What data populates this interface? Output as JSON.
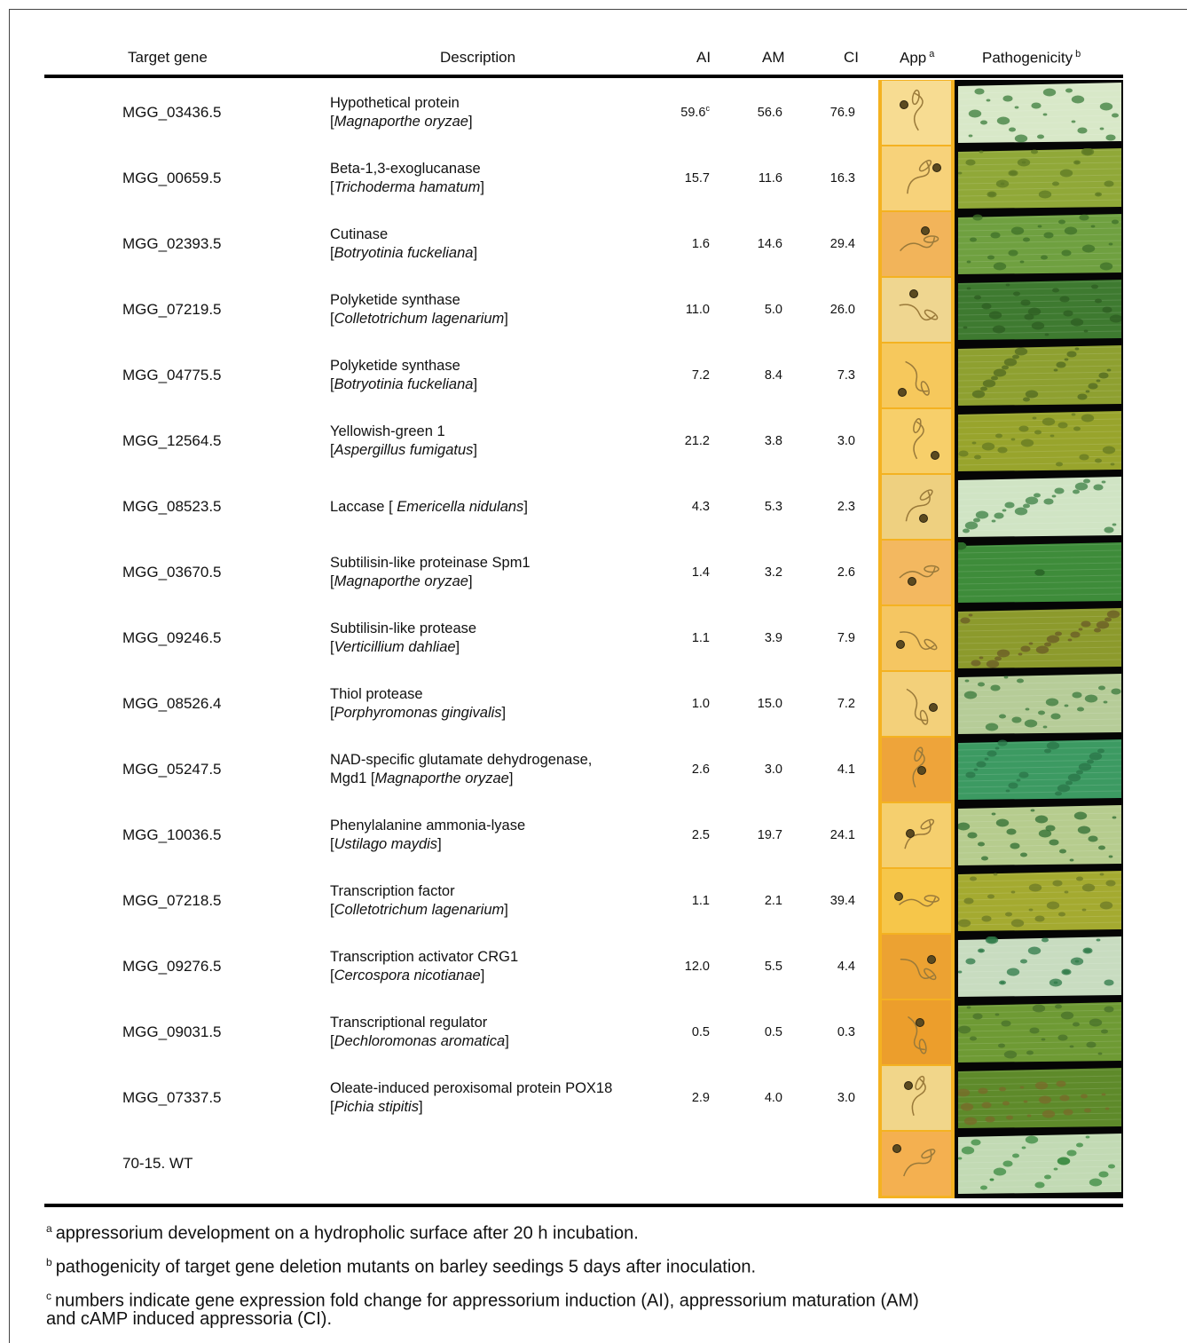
{
  "headers": {
    "target_gene": "Target gene",
    "description": "Description",
    "ai": "AI",
    "am": "AM",
    "ci": "CI",
    "app": "App",
    "app_mark": "a",
    "pathogenicity": "Pathogenicity",
    "pathogenicity_mark": "b"
  },
  "rows": [
    {
      "gene": "MGG_03436.5",
      "line1": "Hypothetical protein",
      "pre": "[",
      "species": "Magnaporthe oryzae",
      "post": "]",
      "ai": "59.6",
      "ai_mark": "c",
      "am": "56.6",
      "ci": "76.9",
      "app_tint": "#f7dc92",
      "leaf_base": "#d8e8c8",
      "leaf_spots": "#3c7e3c"
    },
    {
      "gene": "MGG_00659.5",
      "line1": "Beta-1,3-exoglucanase",
      "pre": "[",
      "species": "Trichoderma hamatum",
      "post": "]",
      "ai": "15.7",
      "ai_mark": "",
      "am": "11.6",
      "ci": "16.3",
      "app_tint": "#f7d27a",
      "leaf_base": "#90a838",
      "leaf_spots": "#5e7a24"
    },
    {
      "gene": "MGG_02393.5",
      "line1": "Cutinase",
      "pre": "[",
      "species": "Botryotinia fuckeliana",
      "post": "]",
      "ai": "1.6",
      "ai_mark": "",
      "am": "14.6",
      "ci": "29.4",
      "app_tint": "#f2b45a",
      "leaf_base": "#6fa040",
      "leaf_spots": "#3e7028"
    },
    {
      "gene": "MGG_07219.5",
      "line1": "Polyketide synthase",
      "pre": "[",
      "species": "Colletotrichum lagenarium",
      "post": "]",
      "ai": "11.0",
      "ai_mark": "",
      "am": "5.0",
      "ci": "26.0",
      "app_tint": "#efd690",
      "leaf_base": "#3e7a30",
      "leaf_spots": "#2e5e22"
    },
    {
      "gene": "MGG_04775.5",
      "line1": "Polyketide synthase",
      "pre": "[",
      "species": "Botryotinia fuckeliana",
      "post": "]",
      "ai": "7.2",
      "ai_mark": "",
      "am": "8.4",
      "ci": "7.3",
      "app_tint": "#f6c85c",
      "leaf_base": "#8ea030",
      "leaf_spots": "#506a20"
    },
    {
      "gene": "MGG_12564.5",
      "line1": "Yellowish-green 1",
      "pre": "[",
      "species": "Aspergillus fumigatus",
      "post": "]",
      "ai": "21.2",
      "ai_mark": "",
      "am": "3.8",
      "ci": "3.0",
      "app_tint": "#f7cf6a",
      "leaf_base": "#98a42c",
      "leaf_spots": "#667a22"
    },
    {
      "gene": "MGG_08523.5",
      "line1": "Laccase",
      "pre": "[ ",
      "species": "Emericella nidulans",
      "post": "]",
      "ai": "4.3",
      "ai_mark": "",
      "am": "5.3",
      "ci": "2.3",
      "app_tint": "#eed080",
      "leaf_base": "#d0e4c4",
      "leaf_spots": "#3c8044"
    },
    {
      "gene": "MGG_03670.5",
      "line1": "Subtilisin-like proteinase Spm1",
      "pre": "[",
      "species": "Magnaporthe oryzae",
      "post": "]",
      "ai": "1.4",
      "ai_mark": "",
      "am": "3.2",
      "ci": "2.6",
      "app_tint": "#f3b860",
      "leaf_base": "#3e8c3a",
      "leaf_spots": "#2c6a2a"
    },
    {
      "gene": "MGG_09246.5",
      "line1": "Subtilisin-like protease",
      "pre": "[",
      "species": "Verticillium dahliae",
      "post": "]",
      "ai": "1.1",
      "ai_mark": "",
      "am": "3.9",
      "ci": "7.9",
      "app_tint": "#f5c662",
      "leaf_base": "#8c9a2c",
      "leaf_spots": "#6a5a26"
    },
    {
      "gene": "MGG_08526.4",
      "line1": "Thiol protease",
      "pre": "[",
      "species": "Porphyromonas gingivalis",
      "post": "]",
      "ai": "1.0",
      "ai_mark": "",
      "am": "15.0",
      "ci": "7.2",
      "app_tint": "#f3d07a",
      "leaf_base": "#b6cc98",
      "leaf_spots": "#3a7a3c"
    },
    {
      "gene": "MGG_05247.5",
      "line1": "NAD-specific glutamate dehydrogenase,",
      "pre": "Mgd1 [",
      "species": "Magnaporthe oryzae",
      "post": "]",
      "ai": "2.6",
      "ai_mark": "",
      "am": "3.0",
      "ci": "4.1",
      "app_tint": "#eea43a",
      "leaf_base": "#3c9a62",
      "leaf_spots": "#2a7448"
    },
    {
      "gene": "MGG_10036.5",
      "line1": "Phenylalanine ammonia-lyase",
      "pre": "[",
      "species": "Ustilago maydis",
      "post": "]",
      "ai": "2.5",
      "ai_mark": "",
      "am": "19.7",
      "ci": "24.1",
      "app_tint": "#f5cf6e",
      "leaf_base": "#b6cc8e",
      "leaf_spots": "#2f6e32"
    },
    {
      "gene": "MGG_07218.5",
      "line1": "Transcription factor",
      "pre": "[",
      "species": "Colletotrichum lagenarium",
      "post": "]",
      "ai": "1.1",
      "ai_mark": "",
      "am": "2.1",
      "ci": "39.4",
      "app_tint": "#f6c64a",
      "leaf_base": "#a4aa30",
      "leaf_spots": "#6c7a26"
    },
    {
      "gene": "MGG_09276.5",
      "line1": "Transcription activator CRG1",
      "pre": "[",
      "species": "Cercospora nicotianae",
      "post": "]",
      "ai": "12.0",
      "ai_mark": "",
      "am": "5.5",
      "ci": "4.4",
      "app_tint": "#eca232",
      "leaf_base": "#c8dcc0",
      "leaf_spots": "#2e7a48"
    },
    {
      "gene": "MGG_09031.5",
      "line1": "Transcriptional regulator",
      "pre": "[",
      "species": "Dechloromonas aromatica",
      "post": "]",
      "ai": "0.5",
      "ai_mark": "",
      "am": "0.5",
      "ci": "0.3",
      "app_tint": "#ec9e2c",
      "leaf_base": "#6e9a34",
      "leaf_spots": "#48702a"
    },
    {
      "gene": "MGG_07337.5",
      "line1": "Oleate-induced peroxisomal protein POX18",
      "pre": "[",
      "species": "Pichia stipitis",
      "post": "]",
      "ai": "2.9",
      "ai_mark": "",
      "am": "4.0",
      "ci": "3.0",
      "app_tint": "#f1d68a",
      "leaf_base": "#5e8a2a",
      "leaf_spots": "#7a6a2a"
    },
    {
      "gene": "70-15. WT",
      "line1": "",
      "pre": "",
      "species": "",
      "post": "",
      "ai": "",
      "ai_mark": "",
      "am": "",
      "ci": "",
      "app_tint": "#f4b050",
      "leaf_base": "#c2dab4",
      "leaf_spots": "#3a8a40"
    }
  ],
  "footnotes": [
    {
      "mark": "a",
      "text": "appressorium development on a hydropholic surface after 20 h incubation."
    },
    {
      "mark": "b",
      "text": "pathogenicity of target gene deletion mutants on barley seedings 5 days after inoculation."
    },
    {
      "mark": "c",
      "text": "numbers indicate gene expression fold change for appressorium induction (AI), appressorium maturation (AM)"
    },
    {
      "mark": "",
      "text": "and cAMP induced appressoria (CI)."
    }
  ]
}
